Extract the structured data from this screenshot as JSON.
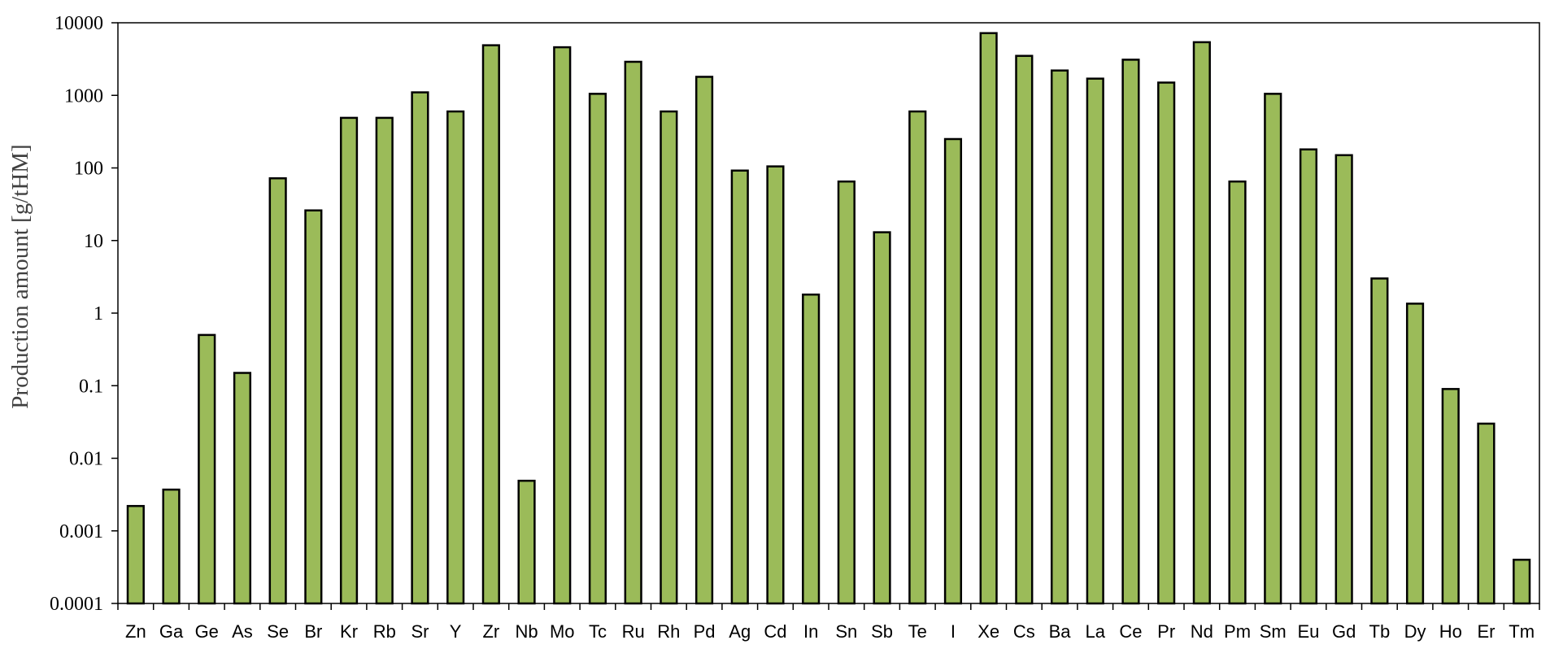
{
  "chart_data": {
    "type": "bar",
    "title": "",
    "xlabel": "",
    "ylabel": "Production amount [g/tHM]",
    "yscale": "log",
    "ylim": [
      0.0001,
      10000
    ],
    "yticks": [
      {
        "value": 0.0001,
        "label": "0.0001"
      },
      {
        "value": 0.001,
        "label": "0.001"
      },
      {
        "value": 0.01,
        "label": "0.01"
      },
      {
        "value": 0.1,
        "label": "0.1"
      },
      {
        "value": 1,
        "label": "1"
      },
      {
        "value": 10,
        "label": "10"
      },
      {
        "value": 100,
        "label": "100"
      },
      {
        "value": 1000,
        "label": "1000"
      },
      {
        "value": 10000,
        "label": "10000"
      }
    ],
    "grid": false,
    "legend": "none",
    "bar_color": "#9bbb59",
    "bar_edge_color": "#000000",
    "categories": [
      "Zn",
      "Ga",
      "Ge",
      "As",
      "Se",
      "Br",
      "Kr",
      "Rb",
      "Sr",
      "Y",
      "Zr",
      "Nb",
      "Mo",
      "Tc",
      "Ru",
      "Rh",
      "Pd",
      "Ag",
      "Cd",
      "In",
      "Sn",
      "Sb",
      "Te",
      "I",
      "Xe",
      "Cs",
      "Ba",
      "La",
      "Ce",
      "Pr",
      "Nd",
      "Pm",
      "Sm",
      "Eu",
      "Gd",
      "Tb",
      "Dy",
      "Ho",
      "Er",
      "Tm"
    ],
    "values": [
      0.0022,
      0.0037,
      0.5,
      0.15,
      72,
      26,
      490,
      490,
      1100,
      600,
      4900,
      0.0049,
      4600,
      1050,
      2900,
      600,
      1800,
      92,
      105,
      1.8,
      65,
      13,
      600,
      250,
      7200,
      3500,
      2200,
      1700,
      3100,
      1500,
      5400,
      65,
      1050,
      180,
      150,
      3.0,
      1.35,
      0.09,
      0.03,
      0.0004
    ]
  }
}
